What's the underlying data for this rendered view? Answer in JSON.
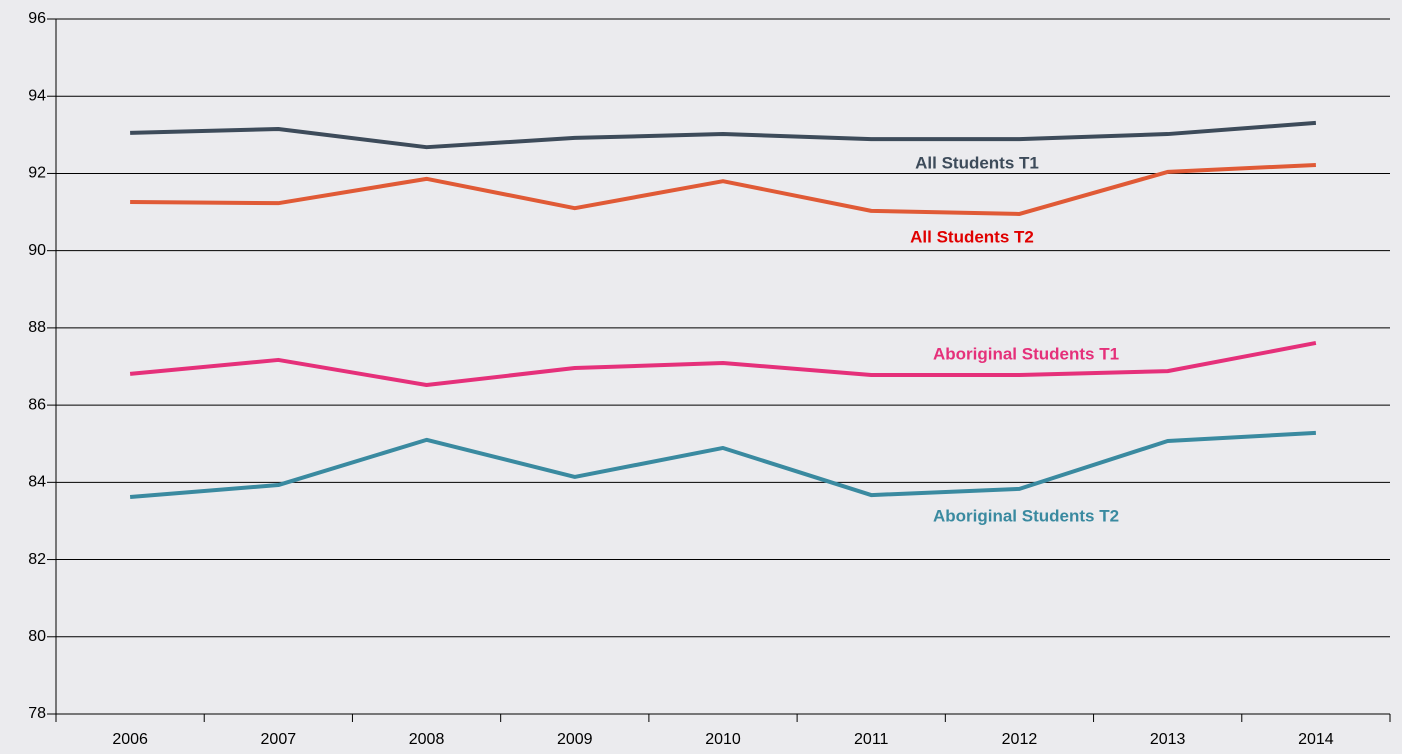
{
  "chart_data": {
    "type": "line",
    "categories": [
      "2006",
      "2007",
      "2008",
      "2009",
      "2010",
      "2011",
      "2012",
      "2013",
      "2014"
    ],
    "series": [
      {
        "name": "All Students T1",
        "color": "#3d4b5a",
        "label_color": "#3d4b5a",
        "values": [
          93.05,
          93.15,
          92.68,
          92.92,
          93.02,
          92.89,
          92.89,
          93.02,
          93.31
        ]
      },
      {
        "name": "All Students T2",
        "color": "#e05a36",
        "label_color": "#e00000",
        "values": [
          91.26,
          91.23,
          91.86,
          91.1,
          91.8,
          91.03,
          90.95,
          92.04,
          92.22
        ]
      },
      {
        "name": "Aboriginal Students T1",
        "color": "#e5307a",
        "label_color": "#e5307a",
        "values": [
          86.81,
          87.17,
          86.52,
          86.96,
          87.09,
          86.78,
          86.78,
          86.88,
          87.61
        ]
      },
      {
        "name": "Aboriginal Students T2",
        "color": "#3a8aa0",
        "label_color": "#3a8aa0",
        "values": [
          83.62,
          83.93,
          85.1,
          84.14,
          84.89,
          83.67,
          83.83,
          85.07,
          85.28
        ]
      }
    ],
    "ylim": [
      78,
      96
    ],
    "yticks": [
      78,
      80,
      82,
      84,
      86,
      88,
      90,
      92,
      94,
      96
    ],
    "grid": true
  }
}
